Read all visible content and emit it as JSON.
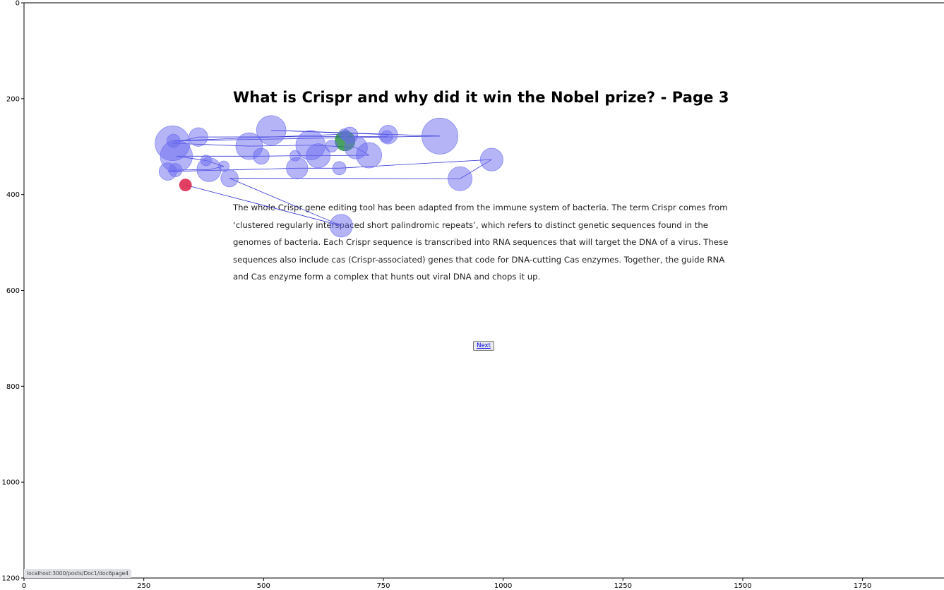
{
  "page": {
    "title": "What is Crispr and why did it win the Nobel prize? - Page 3",
    "paragraph": "The whole Crispr gene editing tool has been adapted from the immune system of bacteria. The term Crispr comes from ‘clustered regularly interspaced short palindromic repeats’, which refers to distinct genetic sequences found in the genomes of bacteria. Each Crispr sequence is transcribed into RNA sequences that will target the DNA of a virus. These sequences also include cas (Crispr-associated) genes that code for DNA-cutting Cas enzymes. Together, the guide RNA and Cas enzyme form a complex that hunts out viral DNA and chops it up.",
    "next_label": "Next",
    "status_url": "localhost:3000/posts/Doc1/doc6page4"
  },
  "chart_data": {
    "type": "scatter",
    "title": "",
    "xlabel": "",
    "ylabel": "",
    "xlim": [
      0,
      1920
    ],
    "ylim": [
      1200,
      0
    ],
    "x_ticks": [
      0,
      250,
      500,
      750,
      1000,
      1250,
      1500,
      1750
    ],
    "y_ticks": [
      0,
      200,
      400,
      600,
      800,
      1000,
      1200
    ],
    "grid": false,
    "fixation_color": "#6a6af0",
    "first_fixation_color": "#1e8a3c",
    "last_fixation_color": "#dc1e46",
    "scanpath_color": "#1a1ad0",
    "fixations": [
      {
        "x": 670,
        "y": 288,
        "r": 15
      },
      {
        "x": 680,
        "y": 276,
        "r": 12
      },
      {
        "x": 668,
        "y": 274,
        "r": 8
      },
      {
        "x": 312,
        "y": 288,
        "r": 10
      },
      {
        "x": 868,
        "y": 278,
        "r": 27
      },
      {
        "x": 516,
        "y": 266,
        "r": 22
      },
      {
        "x": 760,
        "y": 275,
        "r": 14
      },
      {
        "x": 757,
        "y": 279,
        "r": 9
      },
      {
        "x": 364,
        "y": 280,
        "r": 14
      },
      {
        "x": 310,
        "y": 293,
        "r": 26
      },
      {
        "x": 470,
        "y": 299,
        "r": 20
      },
      {
        "x": 598,
        "y": 297,
        "r": 22
      },
      {
        "x": 642,
        "y": 299,
        "r": 9
      },
      {
        "x": 693,
        "y": 302,
        "r": 17
      },
      {
        "x": 720,
        "y": 318,
        "r": 19
      },
      {
        "x": 614,
        "y": 319,
        "r": 18
      },
      {
        "x": 566,
        "y": 319,
        "r": 8
      },
      {
        "x": 495,
        "y": 320,
        "r": 12
      },
      {
        "x": 318,
        "y": 320,
        "r": 24
      },
      {
        "x": 380,
        "y": 329,
        "r": 8
      },
      {
        "x": 417,
        "y": 341,
        "r": 8
      },
      {
        "x": 386,
        "y": 348,
        "r": 18
      },
      {
        "x": 316,
        "y": 349,
        "r": 10
      },
      {
        "x": 300,
        "y": 352,
        "r": 13
      },
      {
        "x": 570,
        "y": 345,
        "r": 16
      },
      {
        "x": 658,
        "y": 345,
        "r": 10
      },
      {
        "x": 976,
        "y": 327,
        "r": 17
      },
      {
        "x": 910,
        "y": 367,
        "r": 18
      },
      {
        "x": 429,
        "y": 366,
        "r": 13
      },
      {
        "x": 662,
        "y": 465,
        "r": 17
      },
      {
        "x": 337,
        "y": 380,
        "r": 9
      }
    ]
  }
}
